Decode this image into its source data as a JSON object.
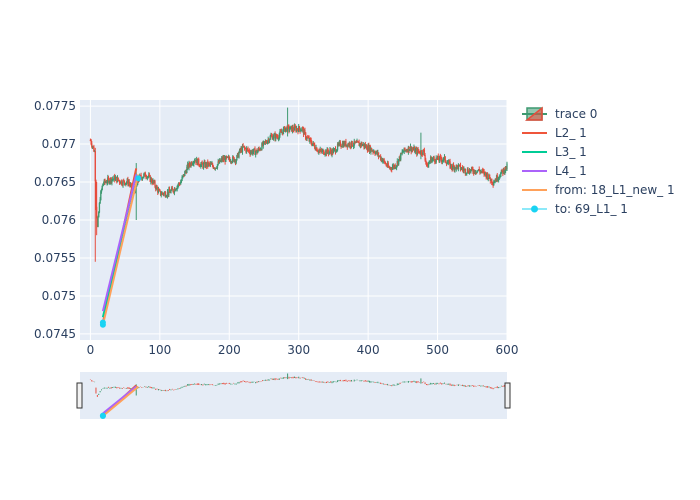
{
  "colors": {
    "plot_bg": "#E5ECF6",
    "grid": "#ffffff",
    "text": "#2a3f5f",
    "up": "#3D9970",
    "down": "#E74C3C",
    "L2": "#EF553B",
    "L3": "#00CC96",
    "L4": "#AB63FA",
    "from": "#FFA15A",
    "to": "#19D3F3"
  },
  "chart_data": {
    "type": "candlestick",
    "xlim": [
      -15,
      600
    ],
    "ylim": [
      0.07442,
      0.07758
    ],
    "xticks": [
      0,
      100,
      200,
      300,
      400,
      500,
      600
    ],
    "yticks": [
      0.0745,
      0.075,
      0.0755,
      0.076,
      0.0765,
      0.077,
      0.0775
    ],
    "ytick_labels": [
      "0.0745",
      "0.075",
      "0.0755",
      "0.076",
      "0.0765",
      "0.077",
      "0.0775"
    ],
    "price_path": [
      [
        0,
        0.07705
      ],
      [
        4,
        0.07695
      ],
      [
        6,
        0.0769
      ],
      [
        8,
        0.0762
      ],
      [
        10,
        0.0759
      ],
      [
        14,
        0.0763
      ],
      [
        18,
        0.07648
      ],
      [
        25,
        0.07652
      ],
      [
        35,
        0.07655
      ],
      [
        45,
        0.0765
      ],
      [
        55,
        0.0765
      ],
      [
        60,
        0.0764
      ],
      [
        65,
        0.0764
      ],
      [
        70,
        0.07655
      ],
      [
        80,
        0.0766
      ],
      [
        90,
        0.0765
      ],
      [
        100,
        0.07635
      ],
      [
        110,
        0.07635
      ],
      [
        120,
        0.0764
      ],
      [
        130,
        0.0765
      ],
      [
        140,
        0.0767
      ],
      [
        150,
        0.0768
      ],
      [
        160,
        0.07672
      ],
      [
        170,
        0.07673
      ],
      [
        180,
        0.0767
      ],
      [
        190,
        0.0768
      ],
      [
        200,
        0.0768
      ],
      [
        210,
        0.0768
      ],
      [
        215,
        0.0769
      ],
      [
        220,
        0.07695
      ],
      [
        230,
        0.0769
      ],
      [
        240,
        0.0769
      ],
      [
        250,
        0.077
      ],
      [
        255,
        0.07705
      ],
      [
        260,
        0.0771
      ],
      [
        270,
        0.0771
      ],
      [
        280,
        0.0772
      ],
      [
        285,
        0.0772
      ],
      [
        290,
        0.0772
      ],
      [
        300,
        0.0772
      ],
      [
        305,
        0.0772
      ],
      [
        310,
        0.0771
      ],
      [
        320,
        0.077
      ],
      [
        330,
        0.0769
      ],
      [
        340,
        0.0769
      ],
      [
        350,
        0.0769
      ],
      [
        360,
        0.077
      ],
      [
        370,
        0.077
      ],
      [
        380,
        0.077
      ],
      [
        390,
        0.077
      ],
      [
        400,
        0.07695
      ],
      [
        410,
        0.0769
      ],
      [
        420,
        0.0768
      ],
      [
        430,
        0.07668
      ],
      [
        440,
        0.07672
      ],
      [
        450,
        0.0769
      ],
      [
        460,
        0.07695
      ],
      [
        470,
        0.0769
      ],
      [
        475,
        0.0769
      ],
      [
        480,
        0.0769
      ],
      [
        485,
        0.0767
      ],
      [
        490,
        0.0768
      ],
      [
        500,
        0.0768
      ],
      [
        510,
        0.0768
      ],
      [
        520,
        0.0767
      ],
      [
        530,
        0.0767
      ],
      [
        540,
        0.07665
      ],
      [
        550,
        0.07665
      ],
      [
        560,
        0.07665
      ],
      [
        570,
        0.0766
      ],
      [
        580,
        0.0765
      ],
      [
        590,
        0.0766
      ],
      [
        600,
        0.0767
      ]
    ],
    "lines": [
      {
        "name": "L2_ 1",
        "color": "#EF553B",
        "x": [
          18,
          66
        ],
        "y": [
          0.07465,
          0.07668
        ]
      },
      {
        "name": "L3_ 1",
        "color": "#00CC96",
        "x": [
          18,
          66
        ],
        "y": [
          0.07472,
          0.0766
        ]
      },
      {
        "name": "L4_ 1",
        "color": "#AB63FA",
        "x": [
          18,
          66
        ],
        "y": [
          0.0748,
          0.0766
        ]
      },
      {
        "name": "from: 18_L1_new_ 1",
        "color": "#FFA15A",
        "x": [
          18,
          69
        ],
        "y": [
          0.07462,
          0.0766
        ]
      },
      {
        "name": "to: 69_L1_ 1",
        "color": "#19D3F3",
        "x": [
          18,
          18
        ],
        "y": [
          0.07462,
          0.07465
        ],
        "markers": true
      }
    ],
    "legend": {
      "placement": "right",
      "entries": [
        "trace 0",
        "L2_ 1",
        "L3_ 1",
        "L4_ 1",
        "from: 18_L1_new_ 1",
        "to: 69_L1_ 1"
      ]
    },
    "rangeslider": true,
    "grid": true
  }
}
